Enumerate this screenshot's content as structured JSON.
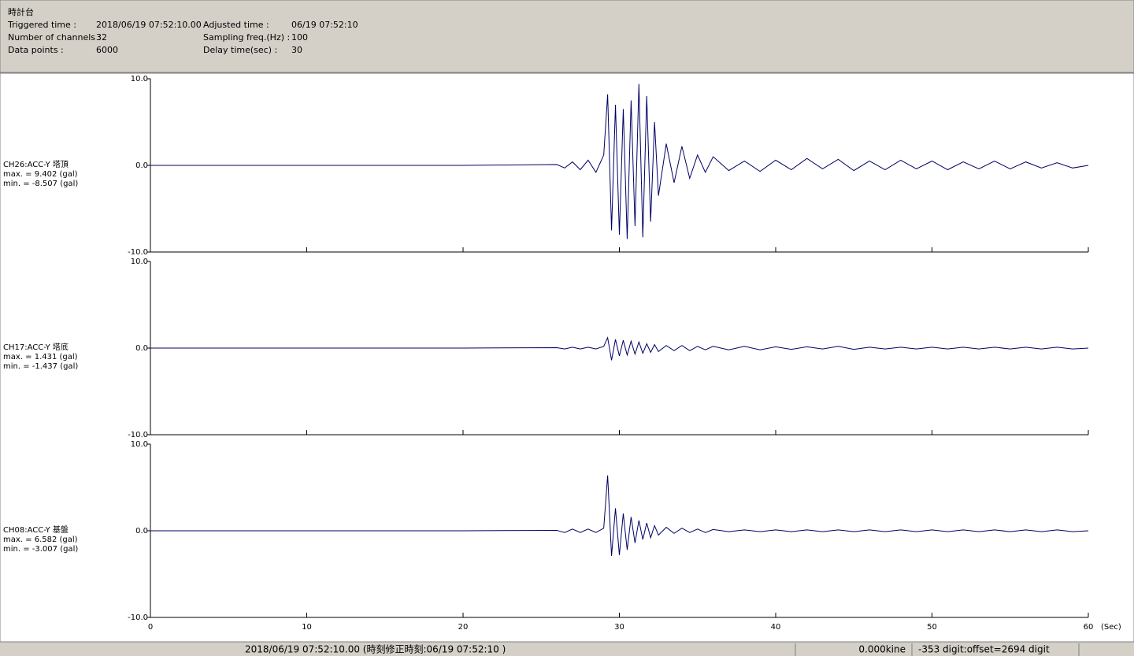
{
  "header": {
    "title": "時計台",
    "fields": [
      {
        "label": "Triggered time :",
        "value": "2018/06/19 07:52:10.00"
      },
      {
        "label": "Adjusted time :",
        "value": "06/19 07:52:10"
      },
      {
        "label": "Number of channels :",
        "value": "32"
      },
      {
        "label": "Sampling freq.(Hz) :",
        "value": "100"
      },
      {
        "label": "Data points :",
        "value": "6000"
      },
      {
        "label": "Delay time(sec) :",
        "value": "30"
      }
    ]
  },
  "chart_data": [
    {
      "type": "line",
      "name": "CH26:ACC-Y 塔頂",
      "annotations": [
        "max. = 9.402 (gal)",
        "min. = -8.507 (gal)"
      ],
      "color": "#000066",
      "xlim": [
        0,
        60
      ],
      "xticks": [
        0,
        10,
        20,
        30,
        40,
        50,
        60
      ],
      "ylim": [
        -10,
        10
      ],
      "yticks": [
        {
          "value": -10,
          "label": "-10.0"
        },
        {
          "value": 0,
          "label": "0.0"
        },
        {
          "value": 10,
          "label": "10.0"
        }
      ],
      "x": [
        0,
        10,
        20,
        26,
        26.5,
        27,
        27.5,
        28,
        28.5,
        29,
        29.25,
        29.5,
        29.75,
        30,
        30.25,
        30.5,
        30.75,
        31,
        31.25,
        31.5,
        31.75,
        32,
        32.25,
        32.5,
        33,
        33.5,
        34,
        34.5,
        35,
        35.5,
        36,
        37,
        38,
        39,
        40,
        41,
        42,
        43,
        44,
        45,
        46,
        47,
        48,
        49,
        50,
        51,
        52,
        53,
        54,
        55,
        56,
        57,
        58,
        59,
        60
      ],
      "values": [
        0,
        0,
        0,
        0.1,
        -0.3,
        0.4,
        -0.5,
        0.6,
        -0.8,
        1.2,
        8.2,
        -7.5,
        7.0,
        -8.0,
        6.5,
        -8.5,
        7.5,
        -7.0,
        9.4,
        -8.3,
        8.0,
        -6.5,
        5.0,
        -3.5,
        2.5,
        -2.0,
        2.2,
        -1.5,
        1.2,
        -0.8,
        1.0,
        -0.6,
        0.5,
        -0.7,
        0.6,
        -0.5,
        0.8,
        -0.4,
        0.7,
        -0.6,
        0.5,
        -0.5,
        0.6,
        -0.4,
        0.5,
        -0.5,
        0.4,
        -0.4,
        0.5,
        -0.4,
        0.4,
        -0.3,
        0.3,
        -0.3,
        0
      ]
    },
    {
      "type": "line",
      "name": "CH17:ACC-Y 塔底",
      "annotations": [
        "max. = 1.431 (gal)",
        "min. = -1.437 (gal)"
      ],
      "color": "#000066",
      "xlim": [
        0,
        60
      ],
      "xticks": [
        0,
        10,
        20,
        30,
        40,
        50,
        60
      ],
      "ylim": [
        -10,
        10
      ],
      "yticks": [
        {
          "value": -10,
          "label": "-10.0"
        },
        {
          "value": 0,
          "label": "0.0"
        },
        {
          "value": 10,
          "label": "10.0"
        }
      ],
      "x": [
        0,
        10,
        20,
        26,
        26.5,
        27,
        27.5,
        28,
        28.5,
        29,
        29.25,
        29.5,
        29.75,
        30,
        30.25,
        30.5,
        30.75,
        31,
        31.25,
        31.5,
        31.75,
        32,
        32.25,
        32.5,
        33,
        33.5,
        34,
        34.5,
        35,
        35.5,
        36,
        37,
        38,
        39,
        40,
        41,
        42,
        43,
        44,
        45,
        46,
        47,
        48,
        49,
        50,
        51,
        52,
        53,
        54,
        55,
        56,
        57,
        58,
        59,
        60
      ],
      "values": [
        0,
        0,
        0,
        0.05,
        -0.1,
        0.1,
        -0.1,
        0.1,
        -0.1,
        0.2,
        1.2,
        -1.4,
        1.0,
        -0.9,
        0.9,
        -0.8,
        0.8,
        -0.7,
        0.7,
        -0.6,
        0.5,
        -0.5,
        0.4,
        -0.4,
        0.3,
        -0.3,
        0.3,
        -0.3,
        0.2,
        -0.2,
        0.2,
        -0.2,
        0.2,
        -0.2,
        0.15,
        -0.15,
        0.15,
        -0.1,
        0.2,
        -0.15,
        0.1,
        -0.1,
        0.1,
        -0.1,
        0.1,
        -0.1,
        0.1,
        -0.1,
        0.1,
        -0.1,
        0.1,
        -0.1,
        0.1,
        -0.1,
        0
      ]
    },
    {
      "type": "line",
      "name": "CH08:ACC-Y 基盤",
      "annotations": [
        "max. = 6.582 (gal)",
        "min. = -3.007 (gal)"
      ],
      "color": "#000066",
      "xlim": [
        0,
        60
      ],
      "xticks": [
        0,
        10,
        20,
        30,
        40,
        50,
        60
      ],
      "xlabel": "(Sec)",
      "ylim": [
        -10,
        10
      ],
      "yticks": [
        {
          "value": -10,
          "label": "-10.0"
        },
        {
          "value": 0,
          "label": "0.0"
        },
        {
          "value": 10,
          "label": "10.0"
        }
      ],
      "x": [
        0,
        10,
        20,
        26,
        26.5,
        27,
        27.5,
        28,
        28.5,
        29,
        29.25,
        29.5,
        29.75,
        30,
        30.25,
        30.5,
        30.75,
        31,
        31.25,
        31.5,
        31.75,
        32,
        32.25,
        32.5,
        33,
        33.5,
        34,
        34.5,
        35,
        35.5,
        36,
        37,
        38,
        39,
        40,
        41,
        42,
        43,
        44,
        45,
        46,
        47,
        48,
        49,
        50,
        51,
        52,
        53,
        54,
        55,
        56,
        57,
        58,
        59,
        60
      ],
      "values": [
        0,
        0,
        0,
        0.05,
        -0.2,
        0.2,
        -0.2,
        0.2,
        -0.2,
        0.3,
        6.4,
        -2.9,
        2.6,
        -2.8,
        2.0,
        -2.2,
        1.6,
        -1.4,
        1.2,
        -1.0,
        0.9,
        -0.8,
        0.6,
        -0.5,
        0.4,
        -0.3,
        0.3,
        -0.2,
        0.2,
        -0.2,
        0.15,
        -0.1,
        0.1,
        -0.1,
        0.1,
        -0.1,
        0.1,
        -0.1,
        0.1,
        -0.1,
        0.1,
        -0.1,
        0.1,
        -0.1,
        0.1,
        -0.1,
        0.1,
        -0.1,
        0.1,
        -0.1,
        0.1,
        -0.1,
        0.1,
        -0.1,
        0
      ]
    }
  ],
  "status_bar": [
    "2018/06/19 07:52:10.00 (時刻修正時刻:06/19 07:52:10 )",
    "0.000kine",
    "-353 digit:offset=2694 digit"
  ]
}
